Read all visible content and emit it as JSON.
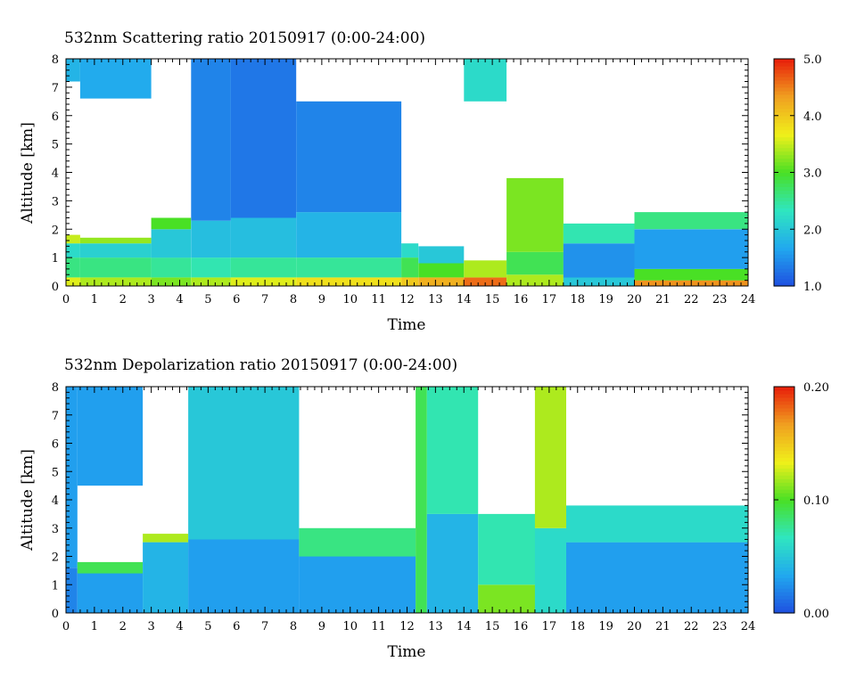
{
  "chart_data": [
    {
      "type": "heatmap",
      "title": "532nm Scattering ratio  20150917 (0:00-24:00)",
      "xlabel": "Time",
      "ylabel": "Altitude [km]",
      "xlim": [
        0,
        24
      ],
      "ylim": [
        0,
        8
      ],
      "x_ticks": [
        "0",
        "1",
        "2",
        "3",
        "4",
        "5",
        "6",
        "7",
        "8",
        "9",
        "10",
        "11",
        "12",
        "13",
        "14",
        "15",
        "16",
        "17",
        "18",
        "19",
        "20",
        "21",
        "22",
        "23",
        "24"
      ],
      "y_ticks": [
        "0",
        "1",
        "2",
        "3",
        "4",
        "5",
        "6",
        "7",
        "8"
      ],
      "colorbar": {
        "range": [
          1.0,
          5.0
        ],
        "tick_labels": [
          "1.0",
          "2.0",
          "3.0",
          "4.0",
          "5.0"
        ],
        "tick_values": [
          1.0,
          2.0,
          3.0,
          4.0,
          5.0
        ]
      },
      "colors": [
        "#1f4fe0",
        "#21a8ef",
        "#2fe6c0",
        "#49e025",
        "#f0f01a",
        "#f0a020",
        "#e81e0a"
      ],
      "columns": [
        {
          "t": [
            0.0,
            0.5
          ],
          "layers": [
            [
              0,
              0.3,
              3.6
            ],
            [
              0.3,
              1.0,
              2.6
            ],
            [
              1.0,
              1.5,
              2.2
            ],
            [
              1.5,
              1.8,
              3.5
            ],
            [
              7.2,
              8.0,
              1.8
            ]
          ]
        },
        {
          "t": [
            0.5,
            3.0
          ],
          "layers": [
            [
              0,
              0.3,
              3.4
            ],
            [
              0.3,
              1.0,
              2.6
            ],
            [
              1.0,
              1.5,
              2.1
            ],
            [
              1.5,
              1.7,
              3.3
            ],
            [
              6.6,
              8.0,
              1.7
            ]
          ]
        },
        {
          "t": [
            3.0,
            4.4
          ],
          "layers": [
            [
              0,
              0.3,
              3.2
            ],
            [
              0.3,
              1.0,
              2.5
            ],
            [
              1.0,
              2.0,
              2.0
            ],
            [
              2.0,
              2.4,
              3.0
            ]
          ]
        },
        {
          "t": [
            4.4,
            5.8
          ],
          "layers": [
            [
              0,
              0.3,
              3.4
            ],
            [
              0.3,
              1.0,
              2.4
            ],
            [
              1.0,
              2.3,
              1.9
            ],
            [
              2.3,
              8.0,
              1.4
            ]
          ]
        },
        {
          "t": [
            5.8,
            8.1
          ],
          "layers": [
            [
              0,
              0.3,
              3.6
            ],
            [
              0.3,
              1.0,
              2.5
            ],
            [
              1.0,
              2.4,
              1.9
            ],
            [
              2.4,
              8.0,
              1.3
            ]
          ]
        },
        {
          "t": [
            8.1,
            11.8
          ],
          "layers": [
            [
              0,
              0.3,
              3.8
            ],
            [
              0.3,
              1.0,
              2.5
            ],
            [
              1.0,
              2.6,
              1.8
            ],
            [
              2.6,
              6.5,
              1.4
            ]
          ]
        },
        {
          "t": [
            11.8,
            12.4
          ],
          "layers": [
            [
              0,
              0.3,
              4.0
            ],
            [
              0.3,
              1.0,
              2.8
            ],
            [
              1.0,
              1.5,
              2.2
            ]
          ]
        },
        {
          "t": [
            12.4,
            14.0
          ],
          "layers": [
            [
              0,
              0.3,
              4.2
            ],
            [
              0.3,
              0.8,
              3.0
            ],
            [
              0.8,
              1.4,
              2.0
            ]
          ]
        },
        {
          "t": [
            14.0,
            15.5
          ],
          "layers": [
            [
              0,
              0.3,
              4.6
            ],
            [
              0.3,
              0.9,
              3.4
            ],
            [
              6.5,
              8.0,
              2.2
            ]
          ]
        },
        {
          "t": [
            15.5,
            17.5
          ],
          "layers": [
            [
              0,
              0.4,
              3.4
            ],
            [
              0.4,
              1.2,
              2.8
            ],
            [
              1.2,
              3.8,
              3.2
            ]
          ]
        },
        {
          "t": [
            17.5,
            20.0
          ],
          "layers": [
            [
              0,
              0.3,
              2.0
            ],
            [
              0.3,
              1.5,
              1.5
            ],
            [
              1.5,
              2.2,
              2.4
            ]
          ]
        },
        {
          "t": [
            20.0,
            24.0
          ],
          "layers": [
            [
              0,
              0.2,
              4.4
            ],
            [
              0.2,
              0.6,
              3.0
            ],
            [
              0.6,
              2.0,
              1.6
            ],
            [
              2.0,
              2.6,
              2.6
            ]
          ]
        }
      ]
    },
    {
      "type": "heatmap",
      "title": "532nm Depolarization ratio  20150917 (0:00-24:00)",
      "xlabel": "Time",
      "ylabel": "Altitude [km]",
      "xlim": [
        0,
        24
      ],
      "ylim": [
        0,
        8
      ],
      "x_ticks": [
        "0",
        "1",
        "2",
        "3",
        "4",
        "5",
        "6",
        "7",
        "8",
        "9",
        "10",
        "11",
        "12",
        "13",
        "14",
        "15",
        "16",
        "17",
        "18",
        "19",
        "20",
        "21",
        "22",
        "23",
        "24"
      ],
      "y_ticks": [
        "0",
        "1",
        "2",
        "3",
        "4",
        "5",
        "6",
        "7",
        "8"
      ],
      "colorbar": {
        "range": [
          0.0,
          0.2
        ],
        "tick_labels": [
          "0.00",
          "0.10",
          "0.20"
        ],
        "tick_values": [
          0.0,
          0.1,
          0.2
        ]
      },
      "colors": [
        "#1f4fe0",
        "#21a8ef",
        "#2fe6c0",
        "#49e025",
        "#f0f01a",
        "#f0a020",
        "#e81e0a"
      ],
      "columns": [
        {
          "t": [
            0.0,
            0.4
          ],
          "layers": [
            [
              0,
              1.6,
              0.02
            ],
            [
              1.6,
              8.0,
              0.03
            ]
          ]
        },
        {
          "t": [
            0.4,
            2.7
          ],
          "layers": [
            [
              0,
              1.4,
              0.03
            ],
            [
              1.4,
              1.8,
              0.09
            ],
            [
              4.5,
              8.0,
              0.03
            ]
          ]
        },
        {
          "t": [
            2.7,
            4.3
          ],
          "layers": [
            [
              0,
              2.5,
              0.04
            ],
            [
              2.5,
              2.8,
              0.12
            ]
          ]
        },
        {
          "t": [
            4.3,
            8.2
          ],
          "layers": [
            [
              0,
              2.6,
              0.03
            ],
            [
              2.6,
              8.0,
              0.05
            ]
          ]
        },
        {
          "t": [
            8.2,
            12.3
          ],
          "layers": [
            [
              0,
              2.0,
              0.03
            ],
            [
              2.0,
              3.0,
              0.08
            ]
          ]
        },
        {
          "t": [
            12.3,
            12.7
          ],
          "layers": [
            [
              0,
              8.0,
              0.09
            ]
          ]
        },
        {
          "t": [
            12.7,
            14.5
          ],
          "layers": [
            [
              0,
              3.5,
              0.04
            ],
            [
              3.5,
              8.0,
              0.07
            ]
          ]
        },
        {
          "t": [
            14.5,
            16.5
          ],
          "layers": [
            [
              0,
              1.0,
              0.11
            ],
            [
              1.0,
              3.5,
              0.07
            ]
          ]
        },
        {
          "t": [
            16.5,
            17.6
          ],
          "layers": [
            [
              0,
              3.0,
              0.06
            ],
            [
              3.0,
              8.0,
              0.12
            ]
          ]
        },
        {
          "t": [
            17.6,
            24.0
          ],
          "layers": [
            [
              0,
              2.5,
              0.03
            ],
            [
              2.5,
              3.8,
              0.06
            ]
          ]
        }
      ]
    }
  ]
}
